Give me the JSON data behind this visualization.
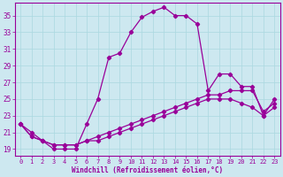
{
  "xlabel": "Windchill (Refroidissement éolien,°C)",
  "bg_color": "#cde8f0",
  "line_color": "#990099",
  "grid_color": "#aad8e0",
  "x_ticks": [
    0,
    1,
    2,
    3,
    4,
    5,
    6,
    7,
    8,
    9,
    10,
    11,
    12,
    13,
    14,
    15,
    16,
    17,
    18,
    19,
    20,
    21,
    22,
    23
  ],
  "y_ticks": [
    19,
    21,
    23,
    25,
    27,
    29,
    31,
    33,
    35
  ],
  "ylim": [
    18.2,
    36.5
  ],
  "xlim": [
    -0.5,
    23.5
  ],
  "line1_x": [
    0,
    1,
    2,
    3,
    4,
    5,
    6,
    7,
    8,
    9,
    10,
    11,
    12,
    13,
    14,
    15,
    16,
    17,
    18,
    19,
    20,
    21,
    22,
    23
  ],
  "line1_y": [
    22,
    21,
    20,
    19,
    19,
    19,
    22,
    25,
    30,
    30.5,
    33,
    34.8,
    35.5,
    36,
    35,
    35,
    34,
    26,
    28,
    28,
    26.5,
    26.5,
    23,
    25
  ],
  "line2_x": [
    0,
    1,
    2,
    3,
    4,
    5,
    6,
    7,
    8,
    9,
    10,
    11,
    12,
    13,
    14,
    15,
    16,
    17,
    18,
    19,
    20,
    21,
    22,
    23
  ],
  "line2_y": [
    22,
    20.5,
    20,
    19.5,
    19.5,
    19.5,
    20,
    20.5,
    21,
    21.5,
    22,
    22.5,
    23,
    23.5,
    24,
    24.5,
    25,
    25.5,
    25.5,
    26,
    26,
    26,
    23.5,
    24.5
  ],
  "line3_x": [
    0,
    1,
    2,
    3,
    4,
    5,
    6,
    7,
    8,
    9,
    10,
    11,
    12,
    13,
    14,
    15,
    16,
    17,
    18,
    19,
    20,
    21,
    22,
    23
  ],
  "line3_y": [
    22,
    20.5,
    20,
    19.5,
    19.5,
    19.5,
    20,
    20,
    20.5,
    21,
    21.5,
    22,
    22.5,
    23,
    23.5,
    24,
    24.5,
    25,
    25,
    25,
    24.5,
    24,
    23,
    24
  ]
}
